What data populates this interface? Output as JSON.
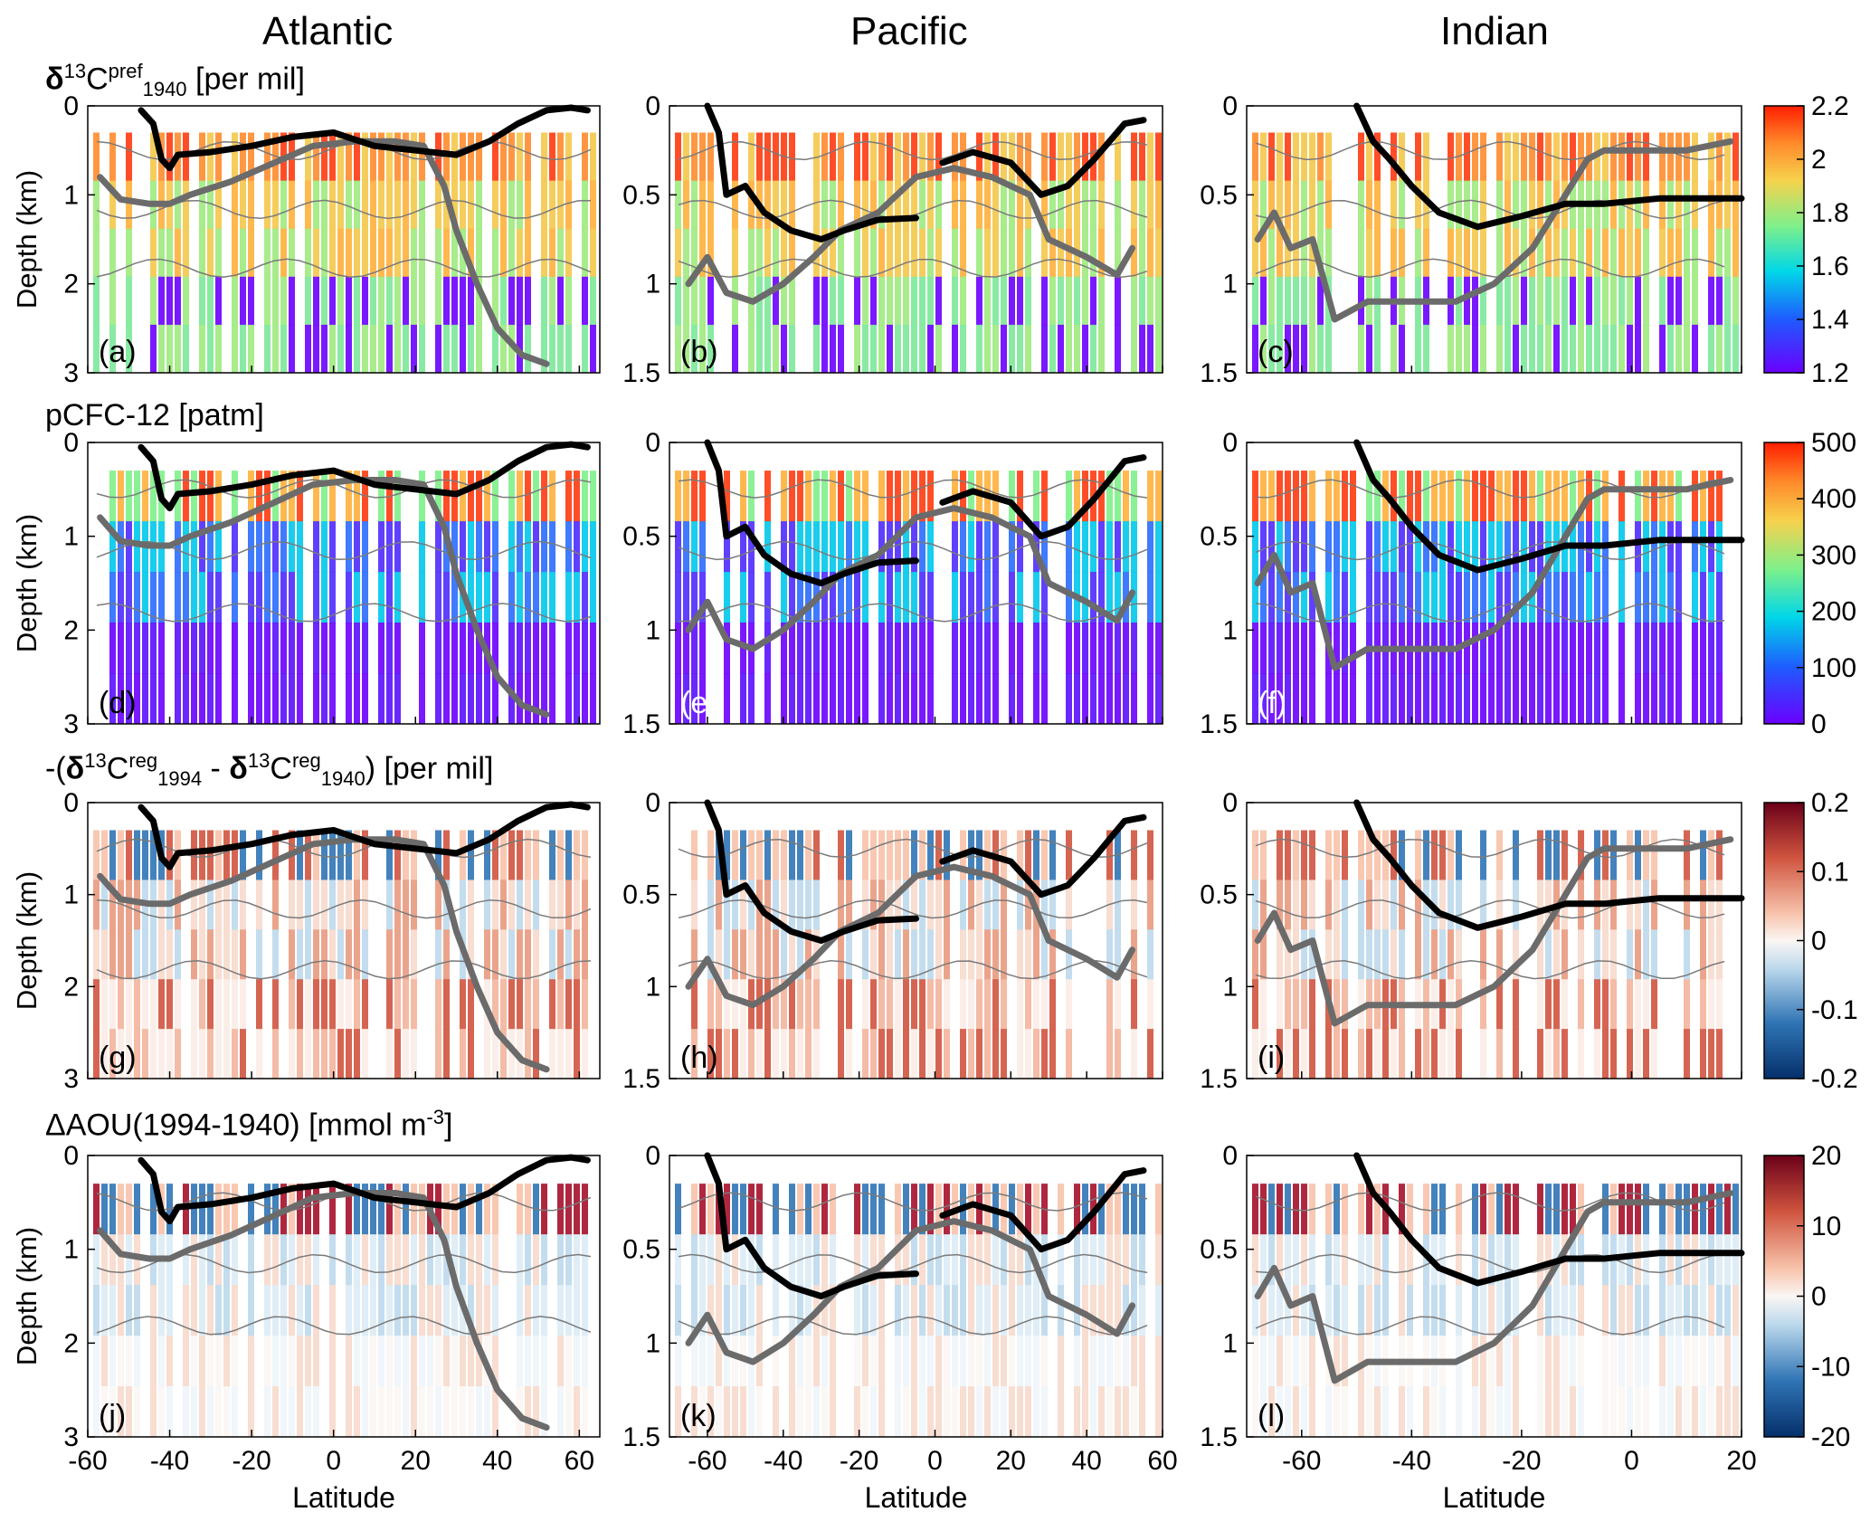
{
  "column_titles": [
    "Atlantic",
    "Pacific",
    "Indian"
  ],
  "row_titles": [
    {
      "pre": "",
      "bold": "δ",
      "sup": "13",
      "main": "C",
      "sup2": "pref",
      "sub": "1940",
      "post": " [per mil]"
    },
    {
      "text": "pCFC-12 [patm]"
    },
    {
      "p1": "-(",
      "b1": "δ",
      "s1": "13",
      "m1": "C",
      "sp1": "reg",
      "sb1": "1994",
      "mid": " - ",
      "b2": "δ",
      "s2": "13",
      "m2": "C",
      "sp2": "reg",
      "sb2": "1940",
      "post": ") [per mil]"
    },
    {
      "pre": "ΔAOU(1994-1940) [mmol m",
      "sup": "-3",
      "post": "]"
    }
  ],
  "axis": {
    "ylabel": "Depth (km)",
    "xlabel": "Latitude",
    "atlantic": {
      "xlim": [
        -60,
        65
      ],
      "xticks": [
        -60,
        -40,
        -20,
        0,
        20,
        40,
        60
      ],
      "ylim": [
        0,
        3
      ],
      "yticks": [
        0,
        1,
        2,
        3
      ]
    },
    "pacific": {
      "xlim": [
        -70,
        60
      ],
      "xticks": [
        -60,
        -40,
        -20,
        0,
        20,
        40,
        60
      ],
      "ylim": [
        0,
        1.5
      ],
      "yticks": [
        0,
        0.5,
        1,
        1.5
      ]
    },
    "indian": {
      "xlim": [
        -70,
        20
      ],
      "xticks": [
        -60,
        -40,
        -20,
        0,
        20
      ],
      "ylim": [
        0,
        1.5
      ],
      "yticks": [
        0,
        0.5,
        1,
        1.5
      ]
    }
  },
  "panel_labels": [
    "(a)",
    "(b)",
    "(c)",
    "(d)",
    "(e)",
    "(f)",
    "(g)",
    "(h)",
    "(i)",
    "(j)",
    "(k)",
    "(l)"
  ],
  "colors": {
    "black_line": "#000000",
    "gray_line": "#6b6b6b",
    "contour": "#7a7a7a"
  },
  "chart_data": [
    {
      "type": "heatmap",
      "variable": "δ13C pref 1940",
      "units": "per mil",
      "colormap": "jet",
      "colorbar": {
        "range": [
          1.2,
          2.2
        ],
        "ticks": [
          "2.2",
          "2",
          "1.8",
          "1.6",
          "1.4",
          "1.2"
        ]
      }
    },
    {
      "type": "heatmap",
      "variable": "pCFC-12",
      "units": "patm",
      "colormap": "jet",
      "colorbar": {
        "range": [
          0,
          500
        ],
        "ticks": [
          "500",
          "400",
          "300",
          "200",
          "100",
          "0"
        ]
      }
    },
    {
      "type": "heatmap",
      "variable": "-(δ13C reg 1994 - δ13C reg 1940)",
      "units": "per mil",
      "colormap": "diverging",
      "colorbar": {
        "range": [
          -0.2,
          0.2
        ],
        "ticks": [
          "0.2",
          "0.1",
          "0",
          "-0.1",
          "-0.2"
        ]
      }
    },
    {
      "type": "heatmap",
      "variable": "ΔAOU(1994-1940)",
      "units": "mmol m-3",
      "colormap": "diverging",
      "colorbar": {
        "range": [
          -20,
          20
        ],
        "ticks": [
          "20",
          "10",
          "0",
          "-10",
          "-20"
        ]
      }
    }
  ],
  "lines": {
    "atlantic": {
      "black": [
        [
          -47,
          0.05
        ],
        [
          -44,
          0.2
        ],
        [
          -42,
          0.6
        ],
        [
          -40,
          0.7
        ],
        [
          -38,
          0.55
        ],
        [
          -30,
          0.52
        ],
        [
          -20,
          0.45
        ],
        [
          -10,
          0.35
        ],
        [
          0,
          0.3
        ],
        [
          10,
          0.45
        ],
        [
          20,
          0.5
        ],
        [
          30,
          0.55
        ],
        [
          38,
          0.4
        ],
        [
          45,
          0.2
        ],
        [
          52,
          0.05
        ],
        [
          58,
          0.02
        ],
        [
          62,
          0.05
        ]
      ],
      "gray": [
        [
          -57,
          0.8
        ],
        [
          -52,
          1.05
        ],
        [
          -45,
          1.1
        ],
        [
          -40,
          1.1
        ],
        [
          -35,
          1.0
        ],
        [
          -25,
          0.85
        ],
        [
          -15,
          0.65
        ],
        [
          -5,
          0.45
        ],
        [
          5,
          0.4
        ],
        [
          15,
          0.4
        ],
        [
          22,
          0.45
        ],
        [
          27,
          0.9
        ],
        [
          30,
          1.4
        ],
        [
          35,
          2.0
        ],
        [
          40,
          2.5
        ],
        [
          46,
          2.8
        ],
        [
          52,
          2.9
        ]
      ]
    },
    "pacific": {
      "black": [
        [
          -60,
          0.0
        ],
        [
          -57,
          0.15
        ],
        [
          -55,
          0.5
        ],
        [
          -50,
          0.45
        ],
        [
          -45,
          0.6
        ],
        [
          -38,
          0.7
        ],
        [
          -30,
          0.75
        ],
        [
          -24,
          0.7
        ],
        [
          -15,
          0.64
        ],
        [
          -5,
          0.63
        ]
      ],
      "black2": [
        [
          2,
          0.32
        ],
        [
          10,
          0.26
        ],
        [
          20,
          0.32
        ],
        [
          28,
          0.5
        ],
        [
          35,
          0.45
        ],
        [
          42,
          0.3
        ],
        [
          50,
          0.1
        ],
        [
          55,
          0.08
        ]
      ],
      "gray": [
        [
          -65,
          1.0
        ],
        [
          -60,
          0.85
        ],
        [
          -55,
          1.05
        ],
        [
          -48,
          1.1
        ],
        [
          -40,
          1.0
        ],
        [
          -32,
          0.85
        ],
        [
          -25,
          0.7
        ],
        [
          -15,
          0.6
        ],
        [
          -5,
          0.4
        ],
        [
          5,
          0.35
        ],
        [
          15,
          0.4
        ],
        [
          25,
          0.5
        ],
        [
          30,
          0.75
        ],
        [
          40,
          0.85
        ],
        [
          48,
          0.95
        ],
        [
          52,
          0.8
        ]
      ]
    },
    "indian": {
      "black": [
        [
          -50,
          0.0
        ],
        [
          -47,
          0.2
        ],
        [
          -44,
          0.3
        ],
        [
          -40,
          0.45
        ],
        [
          -35,
          0.6
        ],
        [
          -28,
          0.68
        ],
        [
          -20,
          0.62
        ],
        [
          -12,
          0.55
        ],
        [
          -5,
          0.55
        ],
        [
          5,
          0.52
        ],
        [
          15,
          0.52
        ],
        [
          20,
          0.52
        ]
      ],
      "gray": [
        [
          -68,
          0.75
        ],
        [
          -65,
          0.6
        ],
        [
          -62,
          0.8
        ],
        [
          -58,
          0.75
        ],
        [
          -54,
          1.2
        ],
        [
          -48,
          1.1
        ],
        [
          -40,
          1.1
        ],
        [
          -32,
          1.1
        ],
        [
          -25,
          1.0
        ],
        [
          -18,
          0.8
        ],
        [
          -12,
          0.5
        ],
        [
          -8,
          0.3
        ],
        [
          -5,
          0.25
        ],
        [
          10,
          0.25
        ],
        [
          18,
          0.2
        ]
      ]
    }
  }
}
